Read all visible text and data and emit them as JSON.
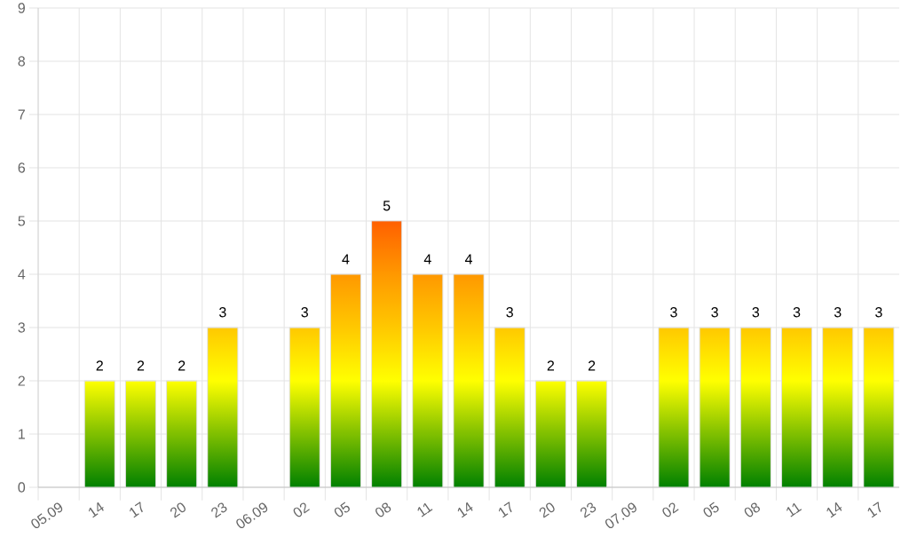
{
  "chart_data": {
    "type": "bar",
    "categories": [
      "05.09",
      "14",
      "17",
      "20",
      "23",
      "06.09",
      "02",
      "05",
      "08",
      "11",
      "14",
      "17",
      "20",
      "23",
      "07.09",
      "02",
      "05",
      "08",
      "11",
      "14",
      "17"
    ],
    "values": [
      null,
      2,
      2,
      2,
      3,
      null,
      3,
      4,
      5,
      4,
      4,
      3,
      2,
      2,
      null,
      3,
      3,
      3,
      3,
      3,
      3
    ],
    "color": "#008000",
    "colors": [
      null,
      "#ffff00",
      "#ffff00",
      "#ffff00",
      "#ffc800",
      null,
      "#ffc800",
      "#ff9800",
      "#ff6000",
      "#ff9800",
      "#ff9800",
      "#ffc800",
      "#ffff00",
      "#ffff00",
      null,
      "#ffc800",
      "#ffc800",
      "#ffc800",
      "#ffc800",
      "#ffc800",
      "#ffc800"
    ],
    "ylim": [
      0,
      9
    ],
    "yticks": [
      0,
      1,
      2,
      3,
      4,
      5,
      6,
      7,
      8,
      9
    ],
    "grid": true,
    "data_labels": true
  }
}
